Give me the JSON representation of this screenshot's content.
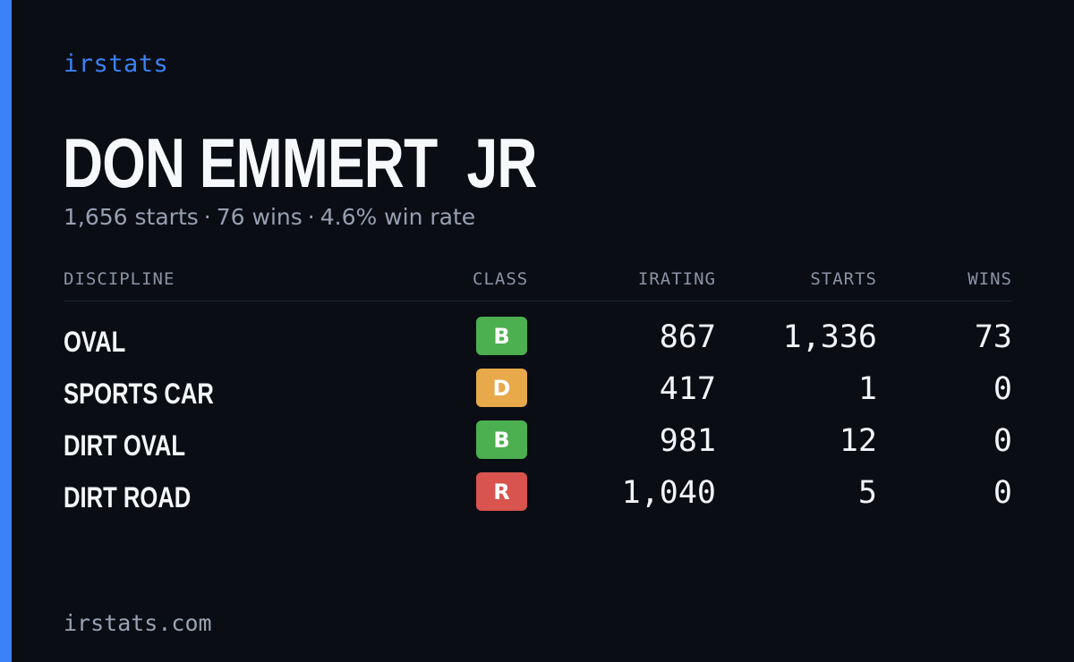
{
  "brand": "irstats",
  "player": {
    "name": "DON EMMERT  JR"
  },
  "summary": {
    "starts": "1,656 starts",
    "wins": "76 wins",
    "win_rate": "4.6% win rate",
    "separator": "·"
  },
  "table": {
    "headers": {
      "discipline": "DISCIPLINE",
      "class": "CLASS",
      "irating": "IRATING",
      "starts": "STARTS",
      "wins": "WINS"
    },
    "rows": [
      {
        "discipline": "OVAL",
        "class": "B",
        "class_color": "#4caf50",
        "irating": "867",
        "starts": "1,336",
        "wins": "73"
      },
      {
        "discipline": "SPORTS CAR",
        "class": "D",
        "class_color": "#e8a94a",
        "irating": "417",
        "starts": "1",
        "wins": "0"
      },
      {
        "discipline": "DIRT OVAL",
        "class": "B",
        "class_color": "#4caf50",
        "irating": "981",
        "starts": "12",
        "wins": "0"
      },
      {
        "discipline": "DIRT ROAD",
        "class": "R",
        "class_color": "#d9534f",
        "irating": "1,040",
        "starts": "5",
        "wins": "0"
      }
    ]
  },
  "footer": {
    "url": "irstats.com"
  },
  "colors": {
    "accent": "#3b82f6",
    "background": "#0a0d14"
  }
}
